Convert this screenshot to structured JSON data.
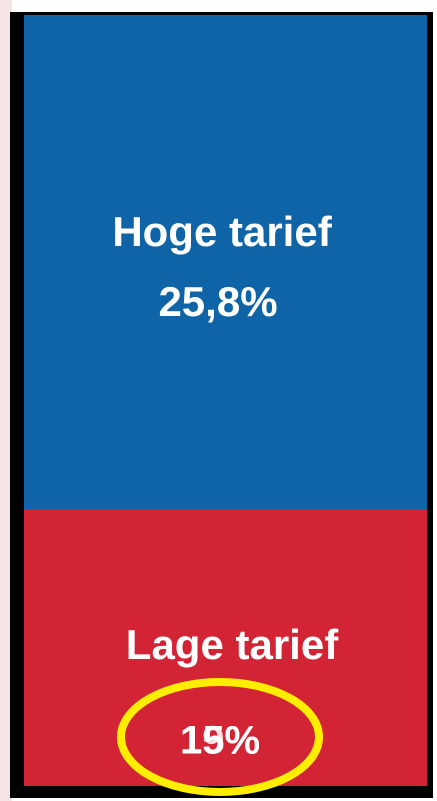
{
  "blocks": [
    {
      "label": "Hoge tarief",
      "value": "25,8%"
    },
    {
      "label": "Lage tarief",
      "values": [
        "15%",
        "19%"
      ]
    }
  ]
}
